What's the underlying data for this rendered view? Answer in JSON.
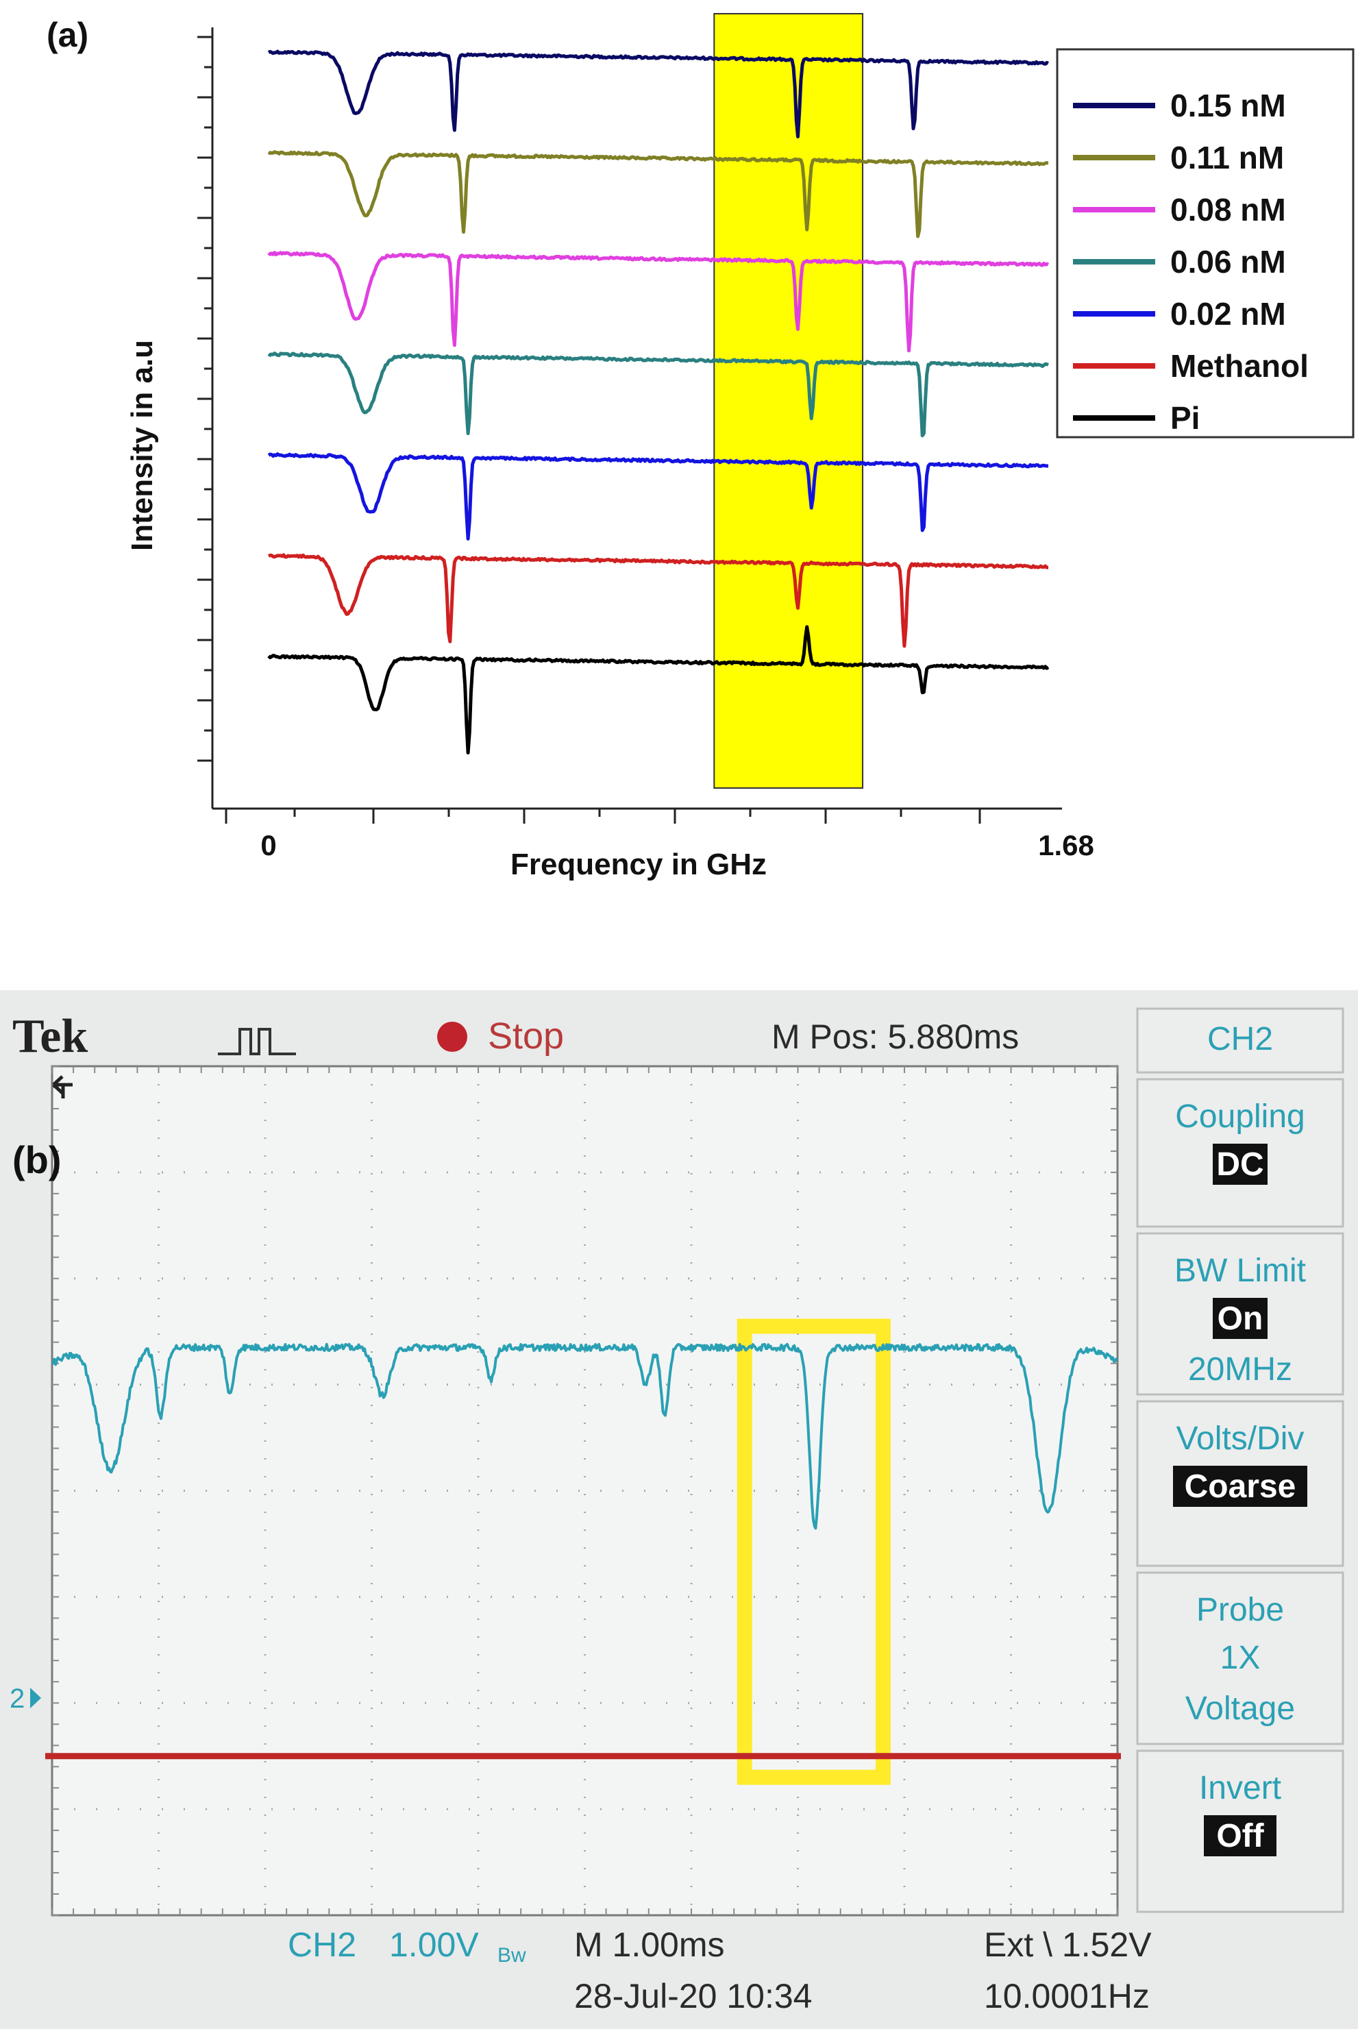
{
  "chart_data": [
    {
      "type": "line",
      "panel_label": "(a)",
      "title": "",
      "xlabel": "Frequency in GHz",
      "ylabel": "Intensity in a.u",
      "xlim": [
        0,
        1.68
      ],
      "x_tick_labels": [
        "0",
        "1.68"
      ],
      "highlight_band": {
        "x_start": 0.96,
        "x_end": 1.28,
        "color": "#ffff00"
      },
      "legend_position": "right",
      "series": [
        {
          "name": "0.15 nM",
          "color": "#0a0a64",
          "baseline": 6,
          "dips": [
            {
              "x": 0.19,
              "depth": 0.75,
              "width": 0.032
            },
            {
              "x": 0.4,
              "depth": 0.95,
              "width": 0.006
            },
            {
              "x": 1.14,
              "depth": 0.95,
              "width": 0.006
            },
            {
              "x": 1.39,
              "depth": 0.85,
              "width": 0.006
            }
          ],
          "spikes": []
        },
        {
          "name": "0.11 nM",
          "color": "#808026",
          "baseline": 5,
          "dips": [
            {
              "x": 0.21,
              "depth": 0.75,
              "width": 0.032
            },
            {
              "x": 0.42,
              "depth": 0.95,
              "width": 0.006
            },
            {
              "x": 1.16,
              "depth": 0.85,
              "width": 0.006
            },
            {
              "x": 1.4,
              "depth": 0.95,
              "width": 0.006
            }
          ],
          "spikes": []
        },
        {
          "name": "0.08 nM",
          "color": "#e040e0",
          "baseline": 4,
          "dips": [
            {
              "x": 0.19,
              "depth": 0.8,
              "width": 0.032
            },
            {
              "x": 0.4,
              "depth": 1.1,
              "width": 0.006
            },
            {
              "x": 1.14,
              "depth": 0.85,
              "width": 0.006
            },
            {
              "x": 1.38,
              "depth": 1.1,
              "width": 0.006
            }
          ],
          "spikes": []
        },
        {
          "name": "0.06 nM",
          "color": "#2a8080",
          "baseline": 3,
          "dips": [
            {
              "x": 0.21,
              "depth": 0.7,
              "width": 0.032
            },
            {
              "x": 0.43,
              "depth": 0.95,
              "width": 0.006
            },
            {
              "x": 1.17,
              "depth": 0.7,
              "width": 0.006
            },
            {
              "x": 1.41,
              "depth": 0.95,
              "width": 0.006
            }
          ],
          "spikes": []
        },
        {
          "name": "0.02 nM",
          "color": "#1414e0",
          "baseline": 2,
          "dips": [
            {
              "x": 0.22,
              "depth": 0.7,
              "width": 0.032
            },
            {
              "x": 0.43,
              "depth": 1.0,
              "width": 0.006
            },
            {
              "x": 1.17,
              "depth": 0.55,
              "width": 0.006
            },
            {
              "x": 1.41,
              "depth": 0.85,
              "width": 0.006
            }
          ],
          "spikes": []
        },
        {
          "name": "Methanol",
          "color": "#d02020",
          "baseline": 1,
          "dips": [
            {
              "x": 0.17,
              "depth": 0.7,
              "width": 0.032
            },
            {
              "x": 0.39,
              "depth": 1.05,
              "width": 0.006
            },
            {
              "x": 1.14,
              "depth": 0.55,
              "width": 0.006
            },
            {
              "x": 1.37,
              "depth": 1.0,
              "width": 0.006
            }
          ],
          "spikes": []
        },
        {
          "name": "Pi",
          "color": "#000000",
          "baseline": 0,
          "dips": [
            {
              "x": 0.23,
              "depth": 0.65,
              "width": 0.025
            },
            {
              "x": 0.43,
              "depth": 1.15,
              "width": 0.006
            },
            {
              "x": 1.41,
              "depth": 0.35,
              "width": 0.006
            }
          ],
          "spikes": [
            {
              "x": 1.16,
              "height": 0.45,
              "width": 0.006
            }
          ]
        }
      ]
    },
    {
      "type": "line",
      "panel_label": "(b)",
      "instrument": "oscilloscope",
      "brand": "Tek",
      "run_state": "Stop",
      "m_pos": "M Pos: 5.880ms",
      "channel": "CH2",
      "channel_scale": "1.00V",
      "bw_suffix": "Bw",
      "timebase": "M 1.00ms",
      "trigger": "Ext \\ 1.52V",
      "date_time": "28-Jul-20 10:34",
      "frequency": "10.0001Hz",
      "ground_marker": "2",
      "grid": {
        "h_divisions": 10,
        "v_divisions": 8
      },
      "x_range_div": [
        0,
        10
      ],
      "y_range_div": [
        -4,
        4
      ],
      "trace_color": "#2aa0b4",
      "reference_line": {
        "y_div": -2.5,
        "color": "#c02828"
      },
      "highlight_box": {
        "x_start_div": 6.5,
        "x_end_div": 7.8,
        "y_top_div": 1.55,
        "y_bottom_div": -2.7,
        "color": "#ffeb2a"
      },
      "trace": {
        "baseline_div": 1.35,
        "dips": [
          {
            "x": 0.55,
            "depth": 1.15,
            "width": 0.18
          },
          {
            "x": 1.02,
            "depth": 0.65,
            "width": 0.06
          },
          {
            "x": 1.67,
            "depth": 0.45,
            "width": 0.05
          },
          {
            "x": 3.1,
            "depth": 0.45,
            "width": 0.1
          },
          {
            "x": 4.12,
            "depth": 0.3,
            "width": 0.05
          },
          {
            "x": 5.57,
            "depth": 0.35,
            "width": 0.06
          },
          {
            "x": 5.75,
            "depth": 0.65,
            "width": 0.05
          },
          {
            "x": 7.16,
            "depth": 1.7,
            "width": 0.07
          },
          {
            "x": 9.35,
            "depth": 1.55,
            "width": 0.16
          }
        ]
      },
      "side_menu": [
        {
          "title": "CH2",
          "values": []
        },
        {
          "title": "Coupling",
          "values": [
            "DC"
          ]
        },
        {
          "title": "BW Limit",
          "values": [
            "On",
            "20MHz"
          ]
        },
        {
          "title": "Volts/Div",
          "values": [
            "Coarse"
          ]
        },
        {
          "title": "Probe",
          "values": [
            "1X",
            "Voltage"
          ]
        },
        {
          "title": "Invert",
          "values": [
            "Off"
          ]
        }
      ]
    }
  ]
}
